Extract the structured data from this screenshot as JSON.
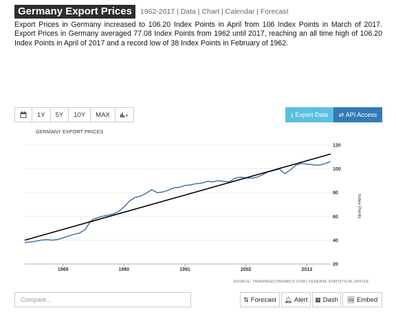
{
  "header": {
    "title": "Germany Export Prices",
    "subnav": "1962-2017 | Data | Chart | Calendar | Forecast"
  },
  "description": "Export Prices in Germany increased to 106.20 Index Points in April from 106 Index Points in March of 2017. Export Prices in Germany averaged 77.08 Index Points from 1962 until 2017, reaching an all time high of 106.20 Index Points in April of 2017 and a record low of 38 Index Points in February of 1962.",
  "toolbar": {
    "ranges": [
      "1Y",
      "5Y",
      "10Y",
      "MAX"
    ],
    "export_label": "Export Data",
    "api_label": "API Access",
    "icons": {
      "calendar": "calendar-icon",
      "chart_type": "bar-chart-icon",
      "export": "download-icon",
      "api": "exchange-icon"
    }
  },
  "chart_data": {
    "type": "line",
    "title": "GERMANY EXPORT PRICES",
    "ylabel": "Index Points",
    "xlabel": "",
    "ylim": [
      20,
      120
    ],
    "xlim": [
      1962.1,
      2017.3
    ],
    "yticks": [
      20,
      40,
      60,
      80,
      100,
      120
    ],
    "xticks": [
      1969,
      1980,
      1991,
      2002,
      2013
    ],
    "grid": "horizontal",
    "series": [
      {
        "color": "#4572a7",
        "x": [
          1962.1,
          1963,
          1964,
          1965,
          1966,
          1967,
          1968,
          1969,
          1970,
          1971,
          1972,
          1973,
          1974,
          1974.6,
          1975,
          1976,
          1977,
          1978,
          1979,
          1980,
          1981,
          1982,
          1983,
          1984,
          1985,
          1986,
          1987,
          1988,
          1989,
          1990,
          1991,
          1992,
          1993,
          1994,
          1995,
          1996,
          1997,
          1998,
          1999,
          2000,
          2001,
          2002,
          2003,
          2004,
          2005,
          2006,
          2007,
          2008,
          2009,
          2010,
          2011,
          2012,
          2013,
          2014,
          2015,
          2016,
          2017.3
        ],
        "y": [
          38,
          38.5,
          39,
          40,
          40.5,
          40,
          40.5,
          42,
          43.5,
          45,
          46,
          49,
          56,
          58,
          58.5,
          60,
          61,
          62,
          64,
          68,
          73,
          76,
          77,
          79.5,
          82.5,
          80,
          80.5,
          82,
          84,
          84.5,
          86,
          86.5,
          87.5,
          88,
          89.5,
          89,
          90,
          89.5,
          89,
          92,
          93,
          92.5,
          92,
          93,
          95,
          97.5,
          98.5,
          100,
          96,
          99,
          103,
          104.5,
          104,
          103.5,
          103,
          104,
          106.2
        ]
      },
      {
        "type": "trend",
        "color": "#000000",
        "x": [
          1962.1,
          2017.3
        ],
        "y": [
          40,
          112.5
        ]
      }
    ],
    "source": "SOURCE: TRADINGECONOMICS.COM | FEDERAL STATISTICAL OFFICE"
  },
  "bottom": {
    "compare_placeholder": "Compare...",
    "forecast_label": "Forecast",
    "alert_label": "Alert",
    "dash_label": "Dash",
    "embed_label": "Embed"
  }
}
